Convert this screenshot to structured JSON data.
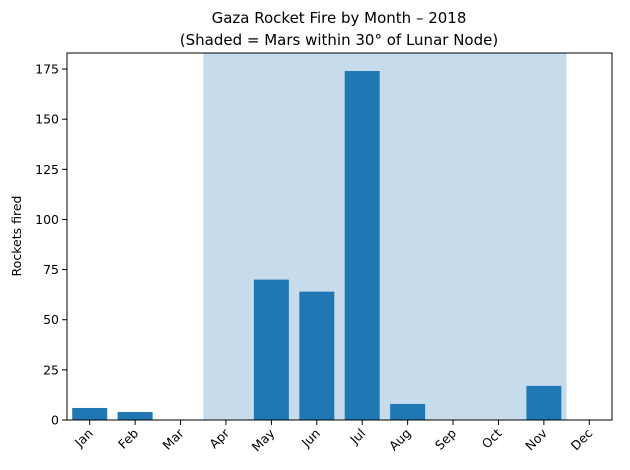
{
  "chart_data": {
    "type": "bar",
    "title": "Gaza Rocket Fire by Month – 2018",
    "subtitle": "(Shaded = Mars within 30° of Lunar Node)",
    "xlabel": "",
    "ylabel": "Rockets fired",
    "categories": [
      "Jan",
      "Feb",
      "Mar",
      "Apr",
      "May",
      "Jun",
      "Jul",
      "Aug",
      "Sep",
      "Oct",
      "Nov",
      "Dec"
    ],
    "values": [
      6,
      4,
      0,
      0,
      70,
      64,
      174,
      8,
      0,
      0,
      17,
      0
    ],
    "ylim": [
      0,
      183
    ],
    "yticks": [
      0,
      25,
      50,
      75,
      100,
      125,
      150,
      175
    ],
    "shaded_range": [
      "Apr",
      "Nov"
    ],
    "bar_color": "#1f77b4",
    "shade_color": "#c6dbec",
    "grid": false,
    "legend": "none"
  }
}
